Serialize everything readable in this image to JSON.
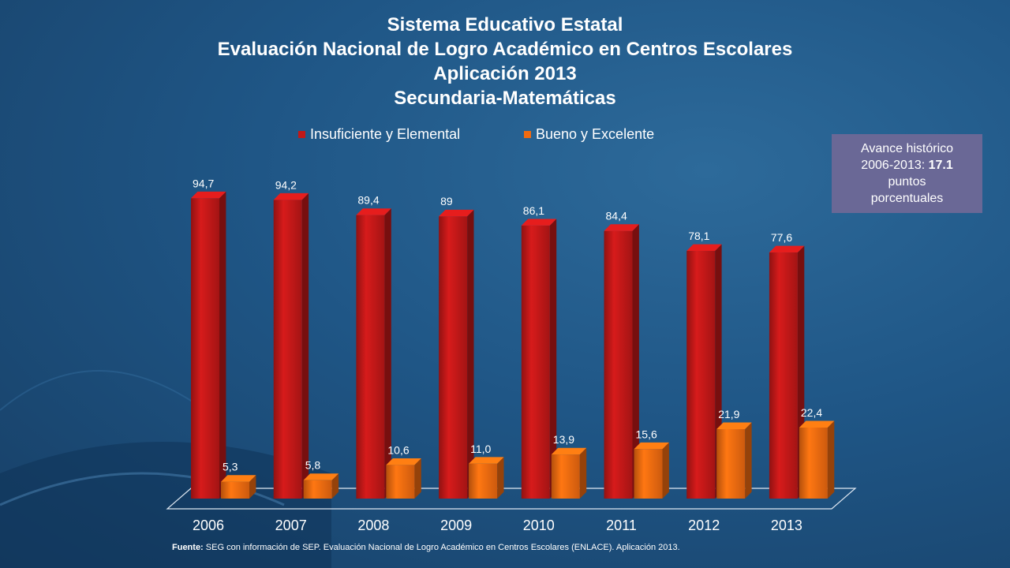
{
  "titles": [
    "Sistema Educativo Estatal",
    "Evaluación Nacional de Logro Académico en Centros Escolares",
    "Aplicación 2013",
    "Secundaria-Matemáticas"
  ],
  "note": {
    "line1": "Avance histórico",
    "line2_prefix": "2006-2013: ",
    "line2_value": "17.1",
    "line3": "puntos",
    "line4": "porcentuales"
  },
  "source": {
    "label": "Fuente:",
    "text": " SEG con información de SEP. Evaluación Nacional de Logro Académico  en Centros Escolares (ENLACE). Aplicación 2013."
  },
  "colors": {
    "series1": "#c01818",
    "series2": "#f06a10"
  },
  "chart_data": {
    "type": "bar",
    "categories": [
      "2006",
      "2007",
      "2008",
      "2009",
      "2010",
      "2011",
      "2012",
      "2013"
    ],
    "series": [
      {
        "name": "Insuficiente y Elemental",
        "values": [
          94.7,
          94.2,
          89.4,
          89,
          86.1,
          84.4,
          78.1,
          77.6
        ],
        "labels": [
          "94,7",
          "94,2",
          "89,4",
          "89",
          "86,1",
          "84,4",
          "78,1",
          "77,6"
        ]
      },
      {
        "name": "Bueno y Excelente",
        "values": [
          5.3,
          5.8,
          10.6,
          11.0,
          13.9,
          15.6,
          21.9,
          22.4
        ],
        "labels": [
          "5,3",
          "5,8",
          "10,6",
          "11,0",
          "13,9",
          "15,6",
          "21,9",
          "22,4"
        ]
      }
    ],
    "ylim": [
      0,
      100
    ],
    "grid": false,
    "legend": "top"
  }
}
